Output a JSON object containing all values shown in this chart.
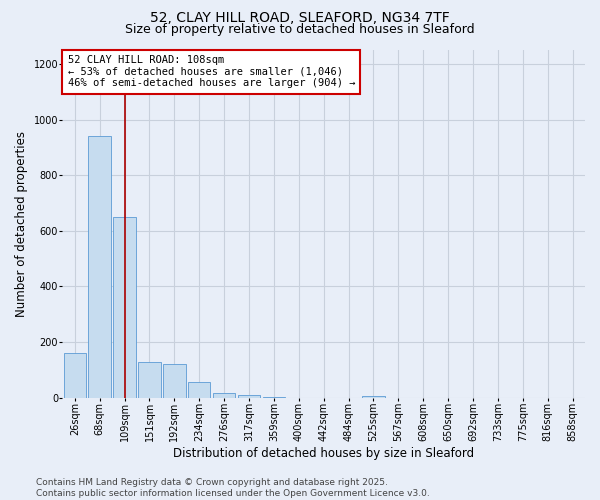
{
  "title_line1": "52, CLAY HILL ROAD, SLEAFORD, NG34 7TF",
  "title_line2": "Size of property relative to detached houses in Sleaford",
  "categories": [
    "26sqm",
    "68sqm",
    "109sqm",
    "151sqm",
    "192sqm",
    "234sqm",
    "276sqm",
    "317sqm",
    "359sqm",
    "400sqm",
    "442sqm",
    "484sqm",
    "525sqm",
    "567sqm",
    "608sqm",
    "650sqm",
    "692sqm",
    "733sqm",
    "775sqm",
    "816sqm",
    "858sqm"
  ],
  "values": [
    160,
    940,
    650,
    130,
    120,
    55,
    18,
    10,
    4,
    0,
    0,
    0,
    8,
    0,
    0,
    0,
    0,
    0,
    0,
    0,
    0
  ],
  "bar_color": "#c6dcef",
  "bar_edge_color": "#5b9bd5",
  "bar_alpha": 1.0,
  "highlight_index": 2,
  "red_line_color": "#aa0000",
  "ylabel": "Number of detached properties",
  "xlabel": "Distribution of detached houses by size in Sleaford",
  "ylim": [
    0,
    1250
  ],
  "yticks": [
    0,
    200,
    400,
    600,
    800,
    1000,
    1200
  ],
  "annotation_text": "52 CLAY HILL ROAD: 108sqm\n← 53% of detached houses are smaller (1,046)\n46% of semi-detached houses are larger (904) →",
  "footer_line1": "Contains HM Land Registry data © Crown copyright and database right 2025.",
  "footer_line2": "Contains public sector information licensed under the Open Government Licence v3.0.",
  "background_color": "#e8eef8",
  "plot_bg_color": "#e8eef8",
  "grid_color": "#c8d0dc",
  "title_fontsize": 10,
  "subtitle_fontsize": 9,
  "axis_label_fontsize": 8.5,
  "tick_fontsize": 7,
  "annotation_fontsize": 7.5,
  "footer_fontsize": 6.5
}
